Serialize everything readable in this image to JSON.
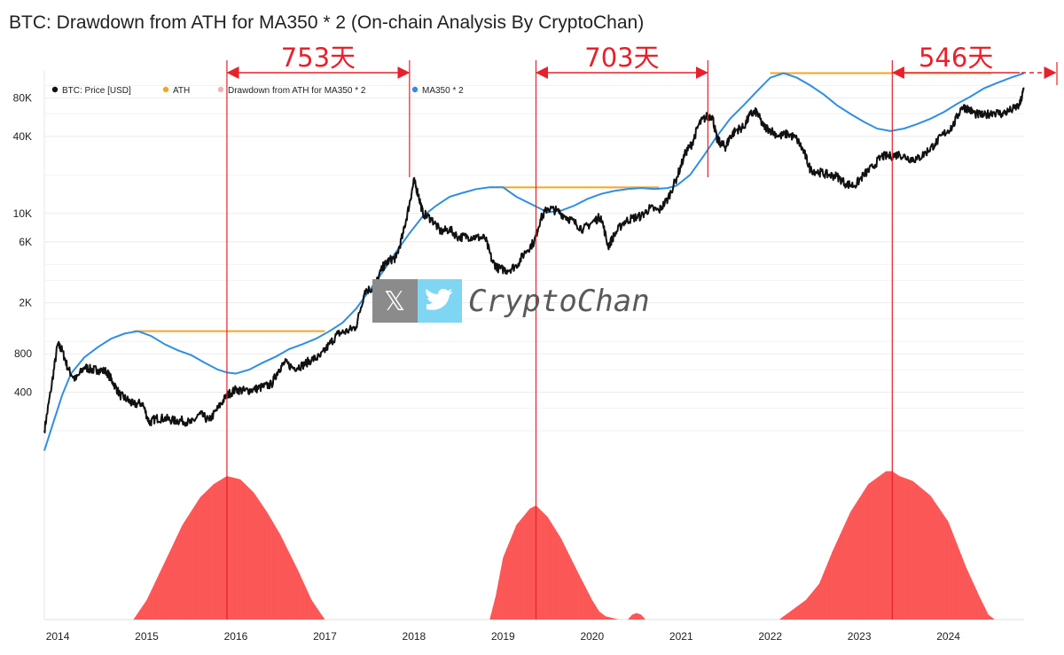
{
  "chart_data": {
    "type": "line",
    "title": "BTC: Drawdown from ATH for MA350 * 2 (On-chain Analysis By CryptoChan)",
    "legend": {
      "placement": "top-left",
      "entries": [
        {
          "name": "BTC: Price [USD]",
          "color": "#111111"
        },
        {
          "name": "ATH",
          "color": "#f5a623"
        },
        {
          "name": "Drawdown from ATH for MA350 * 2",
          "color": "#f4b3b3"
        },
        {
          "name": "MA350 * 2",
          "color": "#2f8fe0"
        }
      ]
    },
    "x_axis": {
      "tick_labels": [
        "2014",
        "2015",
        "2016",
        "2017",
        "2018",
        "2019",
        "2020",
        "2021",
        "2022",
        "2023",
        "2024"
      ],
      "range": [
        2013.85,
        2024.85
      ]
    },
    "y_axis": {
      "scale": "log",
      "tick_values": [
        400,
        800,
        2000,
        6000,
        10000,
        40000,
        80000
      ],
      "tick_labels": [
        "400",
        "800",
        "2K",
        "6K",
        "10K",
        "40K",
        "80K"
      ],
      "range": [
        130,
        130000
      ]
    },
    "grid": true,
    "series": [
      {
        "name": "BTC: Price [USD]",
        "color": "#111111",
        "x": [
          2013.85,
          2013.92,
          2014.0,
          2014.05,
          2014.12,
          2014.2,
          2014.3,
          2014.38,
          2014.45,
          2014.55,
          2014.62,
          2014.7,
          2014.78,
          2014.85,
          2014.95,
          2015.03,
          2015.1,
          2015.2,
          2015.3,
          2015.4,
          2015.5,
          2015.6,
          2015.7,
          2015.8,
          2015.9,
          2016.0,
          2016.1,
          2016.2,
          2016.3,
          2016.4,
          2016.48,
          2016.55,
          2016.65,
          2016.75,
          2016.85,
          2016.95,
          2017.05,
          2017.15,
          2017.25,
          2017.35,
          2017.45,
          2017.55,
          2017.65,
          2017.72,
          2017.8,
          2017.88,
          2017.95,
          2018.0,
          2018.05,
          2018.1,
          2018.2,
          2018.3,
          2018.4,
          2018.5,
          2018.6,
          2018.7,
          2018.8,
          2018.88,
          2018.95,
          2019.05,
          2019.15,
          2019.25,
          2019.35,
          2019.42,
          2019.5,
          2019.6,
          2019.7,
          2019.8,
          2019.9,
          2020.0,
          2020.1,
          2020.18,
          2020.25,
          2020.35,
          2020.45,
          2020.55,
          2020.65,
          2020.75,
          2020.85,
          2020.95,
          2021.05,
          2021.12,
          2021.2,
          2021.28,
          2021.35,
          2021.4,
          2021.45,
          2021.5,
          2021.55,
          2021.62,
          2021.7,
          2021.78,
          2021.85,
          2021.92,
          2022.0,
          2022.1,
          2022.2,
          2022.3,
          2022.38,
          2022.45,
          2022.55,
          2022.65,
          2022.75,
          2022.85,
          2022.95,
          2023.05,
          2023.15,
          2023.25,
          2023.35,
          2023.45,
          2023.55,
          2023.65,
          2023.75,
          2023.85,
          2023.95,
          2024.05,
          2024.15,
          2024.22,
          2024.3,
          2024.4,
          2024.5,
          2024.6,
          2024.7,
          2024.8,
          2024.85
        ],
        "y": [
          200,
          400,
          950,
          850,
          600,
          500,
          630,
          600,
          600,
          580,
          480,
          380,
          350,
          320,
          330,
          230,
          250,
          250,
          240,
          240,
          230,
          270,
          240,
          300,
          380,
          420,
          410,
          420,
          440,
          460,
          600,
          680,
          620,
          650,
          720,
          760,
          950,
          1150,
          1200,
          1300,
          2500,
          2600,
          3800,
          4300,
          4500,
          7000,
          12000,
          18000,
          14000,
          10000,
          9000,
          7200,
          7500,
          6500,
          6600,
          6500,
          6400,
          4200,
          3700,
          3600,
          3900,
          5000,
          6000,
          9000,
          11000,
          10500,
          9500,
          8500,
          7500,
          8500,
          9500,
          5500,
          6800,
          8500,
          9200,
          9500,
          11000,
          10500,
          13000,
          19000,
          30000,
          35000,
          50000,
          57000,
          58000,
          38000,
          35000,
          33000,
          40000,
          45000,
          47000,
          60000,
          62000,
          48000,
          45000,
          40000,
          42000,
          38000,
          30000,
          22000,
          21000,
          20000,
          19500,
          17000,
          16500,
          20000,
          23000,
          28000,
          28000,
          29000,
          27000,
          26500,
          30000,
          35000,
          42000,
          48000,
          68000,
          66000,
          60000,
          58000,
          62000,
          60000,
          64000,
          70000,
          95000
        ]
      },
      {
        "name": "MA350 * 2",
        "color": "#2f8fe0",
        "x": [
          2013.85,
          2013.95,
          2014.05,
          2014.15,
          2014.3,
          2014.45,
          2014.6,
          2014.75,
          2014.9,
          2015.05,
          2015.2,
          2015.35,
          2015.5,
          2015.65,
          2015.8,
          2015.9,
          2016.0,
          2016.15,
          2016.3,
          2016.45,
          2016.6,
          2016.75,
          2016.9,
          2017.05,
          2017.2,
          2017.35,
          2017.5,
          2017.65,
          2017.8,
          2017.95,
          2018.1,
          2018.25,
          2018.4,
          2018.55,
          2018.7,
          2018.85,
          2019.0,
          2019.15,
          2019.35,
          2019.5,
          2019.65,
          2019.8,
          2019.95,
          2020.1,
          2020.25,
          2020.4,
          2020.55,
          2020.7,
          2020.85,
          2020.95,
          2021.1,
          2021.25,
          2021.4,
          2021.55,
          2021.7,
          2021.85,
          2022.0,
          2022.15,
          2022.3,
          2022.45,
          2022.6,
          2022.75,
          2022.9,
          2023.05,
          2023.2,
          2023.35,
          2023.5,
          2023.65,
          2023.8,
          2023.95,
          2024.1,
          2024.25,
          2024.4,
          2024.55,
          2024.7,
          2024.85
        ],
        "y": [
          140,
          230,
          380,
          560,
          750,
          900,
          1050,
          1150,
          1200,
          1100,
          950,
          850,
          780,
          680,
          600,
          570,
          560,
          600,
          680,
          760,
          870,
          950,
          1050,
          1200,
          1400,
          1800,
          2500,
          3500,
          5000,
          7000,
          9500,
          11500,
          13500,
          14500,
          15500,
          16000,
          16000,
          13500,
          11500,
          10200,
          10500,
          11500,
          13000,
          14200,
          15000,
          15500,
          15800,
          15500,
          15800,
          16500,
          20000,
          28000,
          40000,
          55000,
          70000,
          90000,
          115000,
          125000,
          115000,
          100000,
          85000,
          70000,
          60000,
          52000,
          46000,
          44000,
          46000,
          50000,
          55000,
          62000,
          72000,
          82000,
          95000,
          105000,
          115000,
          125000
        ]
      },
      {
        "name": "ATH",
        "color": "#f5a623",
        "segments": [
          {
            "x": [
              2014.85,
              2017.0
            ],
            "y": [
              1200,
              1200
            ]
          },
          {
            "x": [
              2018.85,
              2020.75
            ],
            "y": [
              16000,
              16000
            ]
          },
          {
            "x": [
              2022.0,
              2024.48
            ],
            "y": [
              125000,
              125000
            ]
          }
        ]
      },
      {
        "name": "Drawdown from ATH for MA350 * 2",
        "color": "#f4b3b3",
        "fill": "#ff5a5a",
        "type": "area",
        "x": [
          2014.85,
          2015.0,
          2015.2,
          2015.4,
          2015.6,
          2015.75,
          2015.9,
          2016.05,
          2016.2,
          2016.35,
          2016.5,
          2016.7,
          2016.85,
          2017.0,
          2018.85,
          2018.92,
          2019.0,
          2019.15,
          2019.3,
          2019.37,
          2019.5,
          2019.65,
          2019.85,
          2020.0,
          2020.08,
          2020.15,
          2020.3,
          2020.4,
          2020.45,
          2020.5,
          2020.55,
          2020.6,
          2020.7,
          2020.75,
          2022.1,
          2022.25,
          2022.4,
          2022.55,
          2022.7,
          2022.9,
          2023.1,
          2023.3,
          2023.37,
          2023.45,
          2023.6,
          2023.8,
          2024.0,
          2024.2,
          2024.35,
          2024.45,
          2024.52
        ],
        "y": [
          0,
          12,
          35,
          58,
          75,
          83,
          88,
          86,
          78,
          66,
          52,
          30,
          12,
          0,
          0,
          15,
          38,
          58,
          68,
          70,
          63,
          50,
          28,
          12,
          5,
          2,
          0,
          0,
          3,
          4,
          3,
          0,
          0,
          0,
          0,
          6,
          12,
          22,
          42,
          66,
          83,
          91,
          91,
          88,
          85,
          76,
          60,
          32,
          14,
          3,
          0
        ]
      }
    ],
    "annotations": [
      {
        "label": "753天",
        "x_start": 2015.9,
        "x_end": 2017.95
      },
      {
        "label": "703天",
        "x_start": 2019.37,
        "x_end": 2021.3
      },
      {
        "label": "546天",
        "x_start": 2023.37,
        "x_end": 2024.85
      }
    ],
    "watermark": "CryptoChan"
  }
}
